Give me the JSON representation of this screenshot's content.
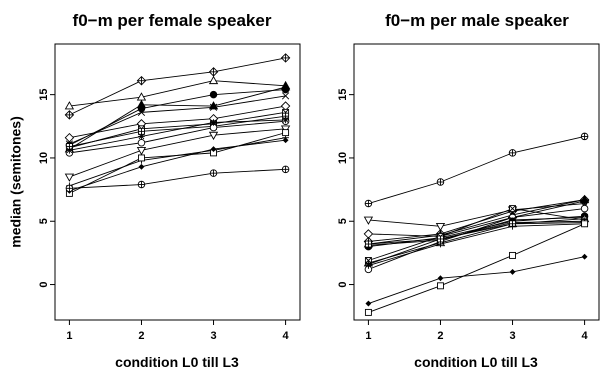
{
  "chart_data": [
    {
      "type": "line",
      "title": "f0−m per female speaker",
      "xlabel": "condition L0 till L3",
      "ylabel": "median (semitones)",
      "x": [
        1,
        2,
        3,
        4
      ],
      "x_ticks": [
        "1",
        "2",
        "3",
        "4"
      ],
      "y_ticks": [
        "0",
        "5",
        "10",
        "15"
      ],
      "xlim": [
        0.8,
        4.2
      ],
      "ylim": [
        -2.8,
        19.0
      ],
      "grid": false,
      "series": [
        {
          "marker": "diamond-plus",
          "values": [
            13.4,
            16.1,
            16.8,
            17.9
          ]
        },
        {
          "marker": "triangle",
          "values": [
            14.1,
            14.8,
            16.1,
            15.7
          ]
        },
        {
          "marker": "filled-triangle",
          "values": [
            10.7,
            14.2,
            14.1,
            15.6
          ]
        },
        {
          "marker": "filled-circle",
          "values": [
            11.0,
            13.9,
            15.0,
            15.4
          ]
        },
        {
          "marker": "x",
          "values": [
            11.1,
            13.6,
            14.0,
            14.9
          ]
        },
        {
          "marker": "diamond",
          "values": [
            11.6,
            12.7,
            13.1,
            14.1
          ]
        },
        {
          "marker": "square-x",
          "values": [
            10.8,
            12.3,
            12.7,
            13.6
          ]
        },
        {
          "marker": "square-plus",
          "values": [
            10.9,
            12.1,
            12.5,
            13.3
          ]
        },
        {
          "marker": "circle",
          "values": [
            10.4,
            11.2,
            12.4,
            12.9
          ]
        },
        {
          "marker": "star",
          "values": [
            10.6,
            11.7,
            12.8,
            13.0
          ]
        },
        {
          "marker": "inverted-triangle",
          "values": [
            8.5,
            10.6,
            11.8,
            12.3
          ]
        },
        {
          "marker": "plus",
          "values": [
            7.8,
            9.8,
            10.6,
            11.6
          ]
        },
        {
          "marker": "square",
          "values": [
            7.2,
            10.0,
            10.4,
            12.0
          ]
        },
        {
          "marker": "small-diamond",
          "values": [
            7.4,
            9.3,
            10.7,
            11.4
          ]
        },
        {
          "marker": "circle-plus",
          "values": [
            7.6,
            7.9,
            8.8,
            9.1
          ]
        }
      ]
    },
    {
      "type": "line",
      "title": "f0−m per male speaker",
      "xlabel": "condition L0 till L3",
      "ylabel": "",
      "x": [
        1,
        2,
        3,
        4
      ],
      "x_ticks": [
        "1",
        "2",
        "3",
        "4"
      ],
      "y_ticks": [
        "0",
        "5",
        "10",
        "15"
      ],
      "xlim": [
        0.8,
        4.2
      ],
      "ylim": [
        -2.8,
        19.0
      ],
      "grid": false,
      "series": [
        {
          "marker": "circle-plus",
          "values": [
            6.4,
            8.1,
            10.4,
            11.7
          ]
        },
        {
          "marker": "inverted-triangle",
          "values": [
            5.1,
            4.6,
            5.9,
            6.4
          ]
        },
        {
          "marker": "diamond",
          "values": [
            4.0,
            3.8,
            5.3,
            6.6
          ]
        },
        {
          "marker": "diamond-plus",
          "values": [
            3.4,
            4.0,
            5.8,
            6.7
          ]
        },
        {
          "marker": "filled-triangle",
          "values": [
            3.2,
            3.9,
            5.5,
            6.7
          ]
        },
        {
          "marker": "circle",
          "values": [
            1.2,
            3.4,
            5.3,
            6.0
          ]
        },
        {
          "marker": "filled-circle",
          "values": [
            3.0,
            3.7,
            5.0,
            5.4
          ]
        },
        {
          "marker": "x",
          "values": [
            3.1,
            3.5,
            5.1,
            5.3
          ]
        },
        {
          "marker": "triangle",
          "values": [
            1.7,
            3.3,
            4.8,
            5.2
          ]
        },
        {
          "marker": "square-x",
          "values": [
            1.9,
            3.8,
            6.0,
            5.1
          ]
        },
        {
          "marker": "star",
          "values": [
            1.6,
            3.6,
            4.9,
            5.0
          ]
        },
        {
          "marker": "square-plus",
          "values": [
            3.2,
            3.6,
            4.8,
            4.9
          ]
        },
        {
          "marker": "plus",
          "values": [
            1.5,
            3.2,
            4.6,
            4.8
          ]
        },
        {
          "marker": "square",
          "values": [
            -2.2,
            -0.1,
            2.3,
            4.8
          ]
        },
        {
          "marker": "small-diamond",
          "values": [
            -1.5,
            0.5,
            1.0,
            2.2
          ]
        }
      ]
    }
  ]
}
